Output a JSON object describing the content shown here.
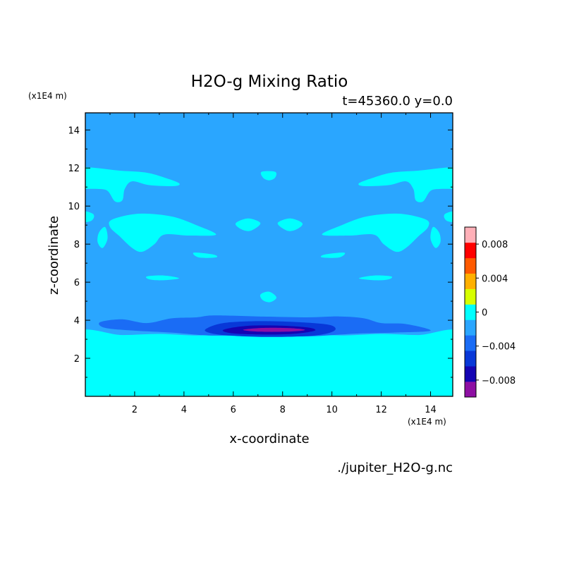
{
  "chart_data": {
    "type": "heatmap",
    "title": "H2O-g Mixing Ratio",
    "subtitle": "t=45360.0 y=0.0",
    "xlabel": "x-coordinate",
    "ylabel": "z-coordinate",
    "x_unit": "(x1E4 m)",
    "y_unit": "(x1E4 m)",
    "source": "./jupiter_H2O-g.nc",
    "xlim": [
      0,
      14.9
    ],
    "ylim": [
      0,
      14.9
    ],
    "x_ticks": [
      2,
      4,
      6,
      8,
      10,
      12,
      14
    ],
    "y_ticks": [
      2,
      4,
      6,
      8,
      10,
      12,
      14
    ],
    "x_tick_labels": [
      "2",
      "4",
      "6",
      "8",
      "10",
      "12",
      "14"
    ],
    "y_tick_labels": [
      "2",
      "4",
      "6",
      "8",
      "10",
      "12",
      "14"
    ],
    "grid": false,
    "colorbar": {
      "levels": [
        -0.01,
        -0.008,
        -0.006,
        -0.004,
        -0.002,
        0,
        0.002,
        0.004,
        0.006,
        0.008,
        0.01
      ],
      "colors": [
        "#8e0fa3",
        "#1404b3",
        "#0838d8",
        "#1a6cf5",
        "#2aa6ff",
        "#00ffff",
        "#d7ff00",
        "#ffb000",
        "#ff5a00",
        "#ff0000",
        "#ffb0b8"
      ],
      "tick_values": [
        0.008,
        0.004,
        0,
        -0.004,
        -0.008
      ],
      "tick_labels": [
        "0.008",
        "0.004",
        "0",
        "−0.004",
        "−0.008"
      ]
    },
    "background_value": -0.001,
    "regions": [
      {
        "value": 0.001,
        "desc": "lower layer",
        "x_range": [
          0,
          14.9
        ],
        "z_range": [
          0,
          3.25
        ]
      },
      {
        "value": -0.003,
        "desc": "depleted band",
        "x_range": [
          0.5,
          14
        ],
        "z_range": [
          3.0,
          4.2
        ]
      },
      {
        "value": -0.005,
        "desc": "depleted core",
        "x_range": [
          4.9,
          10.2
        ],
        "z_range": [
          3.1,
          3.9
        ]
      },
      {
        "value": -0.007,
        "desc": "depleted core",
        "x_range": [
          5.6,
          9.3
        ],
        "z_range": [
          3.25,
          3.7
        ]
      },
      {
        "value": -0.009,
        "desc": "minimum",
        "x_range": [
          6.4,
          8.9
        ],
        "z_range": [
          3.4,
          3.6
        ]
      },
      {
        "value": 0.001,
        "desc": "moist layer ~11.5",
        "x_range": [
          0,
          14.9
        ],
        "z_range": [
          10.2,
          12
        ]
      },
      {
        "value": 0.001,
        "desc": "moist patches ~8.8",
        "x_range": [
          0.5,
          14.5
        ],
        "z_range": [
          7.5,
          9.6
        ]
      },
      {
        "value": 0.001,
        "desc": "small patches ~7.4 and ~6.2",
        "x_range": [
          2.5,
          12.5
        ],
        "z_range": [
          5.9,
          7.6
        ]
      }
    ]
  }
}
